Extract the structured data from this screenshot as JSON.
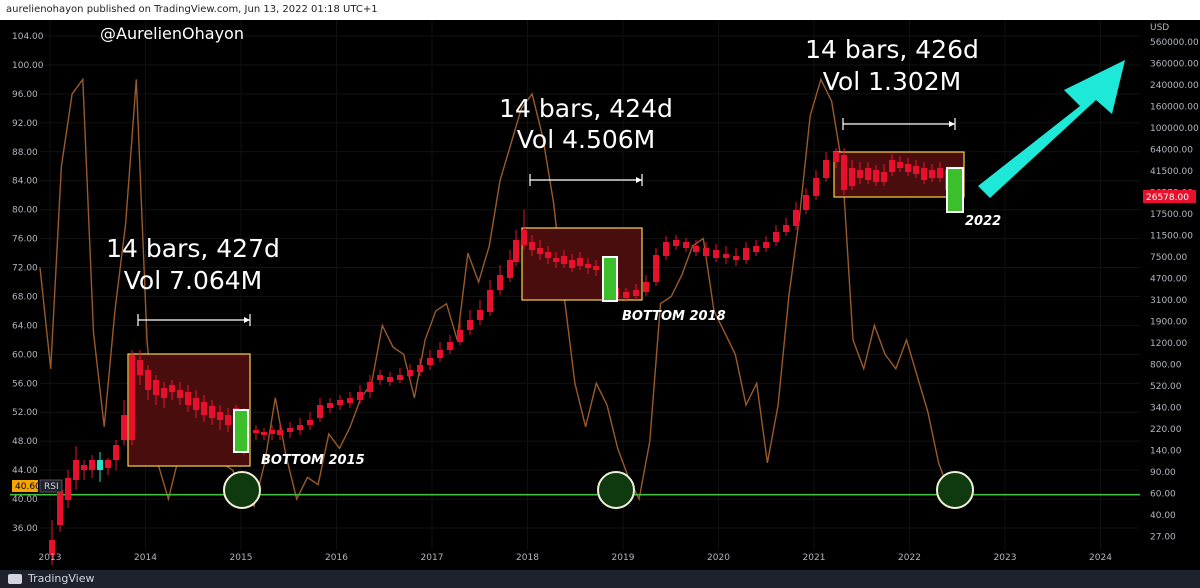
{
  "header": {
    "publisher_line": "aurelienohayon published on TradingView.com, Jun 13, 2022 01:18 UTC+1"
  },
  "footer": {
    "brand": "TradingView"
  },
  "author_tag": "@AurelienOhayon",
  "colors": {
    "up": "#26e0c8",
    "down": "#e8112d",
    "rsi": "#9a5a2a",
    "box_fill": "#4a0d0d",
    "box_stroke": "#f7d54a",
    "green_line": "#3fbf3f",
    "arrow": "#1ee8d8"
  },
  "chart_data": {
    "type": "candlestick",
    "x_ticks": [
      "2013",
      "2014",
      "2015",
      "2016",
      "2017",
      "2018",
      "2019",
      "2020",
      "2021",
      "2022",
      "2023",
      "2024"
    ],
    "left_axis_ticks": [
      "104.00",
      "100.00",
      "96.00",
      "92.00",
      "88.00",
      "84.00",
      "80.00",
      "76.00",
      "72.00",
      "68.00",
      "64.00",
      "60.00",
      "56.00",
      "52.00",
      "48.00",
      "44.00",
      "40.00",
      "36.00"
    ],
    "right_axis_unit": "USD",
    "right_axis_ticks": [
      "560000.00",
      "360000.00",
      "240000.00",
      "160000.00",
      "100000.00",
      "64000.00",
      "41500.00",
      "26578.00",
      "17500.00",
      "11500.00",
      "7500.00",
      "4700.00",
      "3100.00",
      "1900.00",
      "1200.00",
      "800.00",
      "520.00",
      "340.00",
      "220.00",
      "140.00",
      "90.00",
      "60.00",
      "40.00",
      "27.00"
    ],
    "last_price": "26578.00",
    "rsi_label": "RSI",
    "rsi_value": "40.60",
    "rsi_level": 40.6,
    "rsi_line": [
      72,
      58,
      86,
      96,
      98,
      63,
      50,
      66,
      78,
      98,
      62,
      45,
      40,
      46,
      54,
      53,
      50,
      45,
      44,
      41,
      39,
      45,
      54,
      46,
      40,
      43,
      42,
      49,
      47,
      50,
      54,
      56,
      64,
      61,
      60,
      54,
      62,
      66,
      67,
      62,
      74,
      70,
      75,
      84,
      89,
      94,
      96,
      90,
      81,
      68,
      56,
      50,
      56,
      53,
      47,
      43,
      40,
      48,
      67,
      68,
      71,
      75,
      76,
      66,
      63,
      60,
      53,
      56,
      45,
      53,
      68,
      79,
      93,
      98,
      95,
      86,
      62,
      58,
      64,
      60,
      58,
      62,
      57,
      52,
      45,
      41,
      40
    ],
    "annotations": [
      {
        "title": "14 bars, 427d",
        "vol": "Vol 7.064M",
        "bottom_label": "BOTTOM 2015"
      },
      {
        "title": "14 bars, 424d",
        "vol": "Vol 4.506M",
        "bottom_label": "BOTTOM 2018"
      },
      {
        "title": "14 bars, 426d",
        "vol": "Vol 1.302M",
        "bottom_label": "2022"
      }
    ]
  }
}
